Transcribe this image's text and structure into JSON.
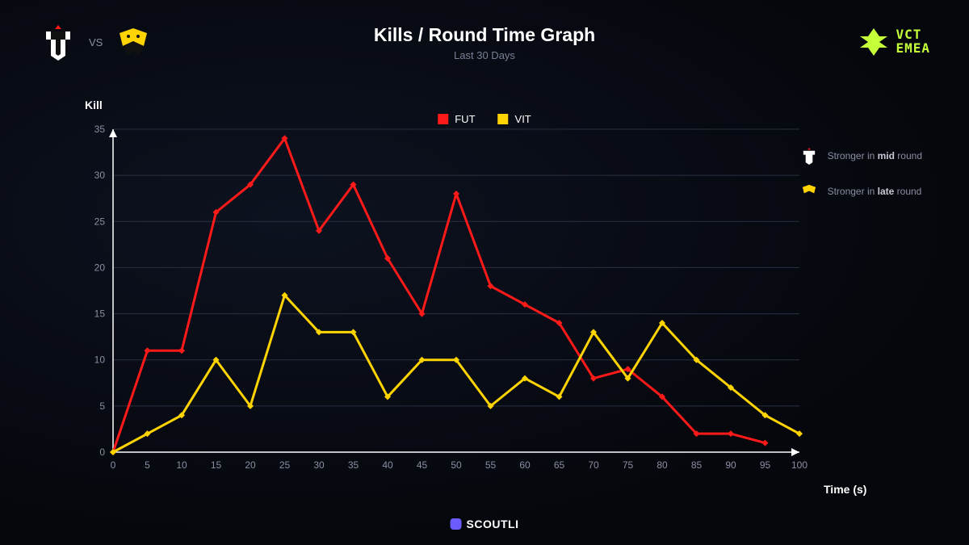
{
  "header": {
    "vs_label": "VS",
    "team1_name": "FUT",
    "team2_name": "VIT"
  },
  "title": "Kills / Round Time Graph",
  "subtitle": "Last 30 Days",
  "league": {
    "line1": "VCT",
    "line2": "EMEA",
    "color": "#c5ff3a"
  },
  "legend": {
    "series1": "FUT",
    "series2": "VIT"
  },
  "notes": {
    "n1_prefix": "Stronger in ",
    "n1_bold": "mid",
    "n1_suffix": " round",
    "n2_prefix": "Stronger in ",
    "n2_bold": "late",
    "n2_suffix": " round"
  },
  "footer": {
    "brand": "SCOUTLI"
  },
  "chart": {
    "type": "line",
    "background_color": "transparent",
    "grid_color": "#2a3042",
    "axis_color": "#ffffff",
    "tick_color": "#8a8fa3",
    "tick_fontsize": 12,
    "ylabel": "Kill",
    "xlabel": "Time (s)",
    "xlim": [
      0,
      100
    ],
    "ylim": [
      0,
      35
    ],
    "xtick_step": 5,
    "ytick_step": 5,
    "line_width": 3,
    "marker": "diamond",
    "marker_size": 4,
    "series": [
      {
        "name": "FUT",
        "color": "#ff1a1a",
        "x": [
          0,
          5,
          10,
          15,
          20,
          25,
          30,
          35,
          40,
          45,
          50,
          55,
          60,
          65,
          70,
          75,
          80,
          85,
          90,
          95
        ],
        "y": [
          0,
          11,
          11,
          26,
          29,
          34,
          24,
          29,
          21,
          15,
          28,
          18,
          16,
          14,
          8,
          9,
          6,
          2,
          2,
          1
        ]
      },
      {
        "name": "VIT",
        "color": "#ffd400",
        "x": [
          0,
          5,
          10,
          15,
          20,
          25,
          30,
          35,
          40,
          45,
          50,
          55,
          60,
          65,
          70,
          75,
          80,
          85,
          90,
          95,
          100
        ],
        "y": [
          0,
          2,
          4,
          10,
          5,
          17,
          13,
          13,
          6,
          10,
          10,
          5,
          8,
          6,
          13,
          8,
          14,
          10,
          7,
          4,
          2
        ]
      }
    ]
  }
}
